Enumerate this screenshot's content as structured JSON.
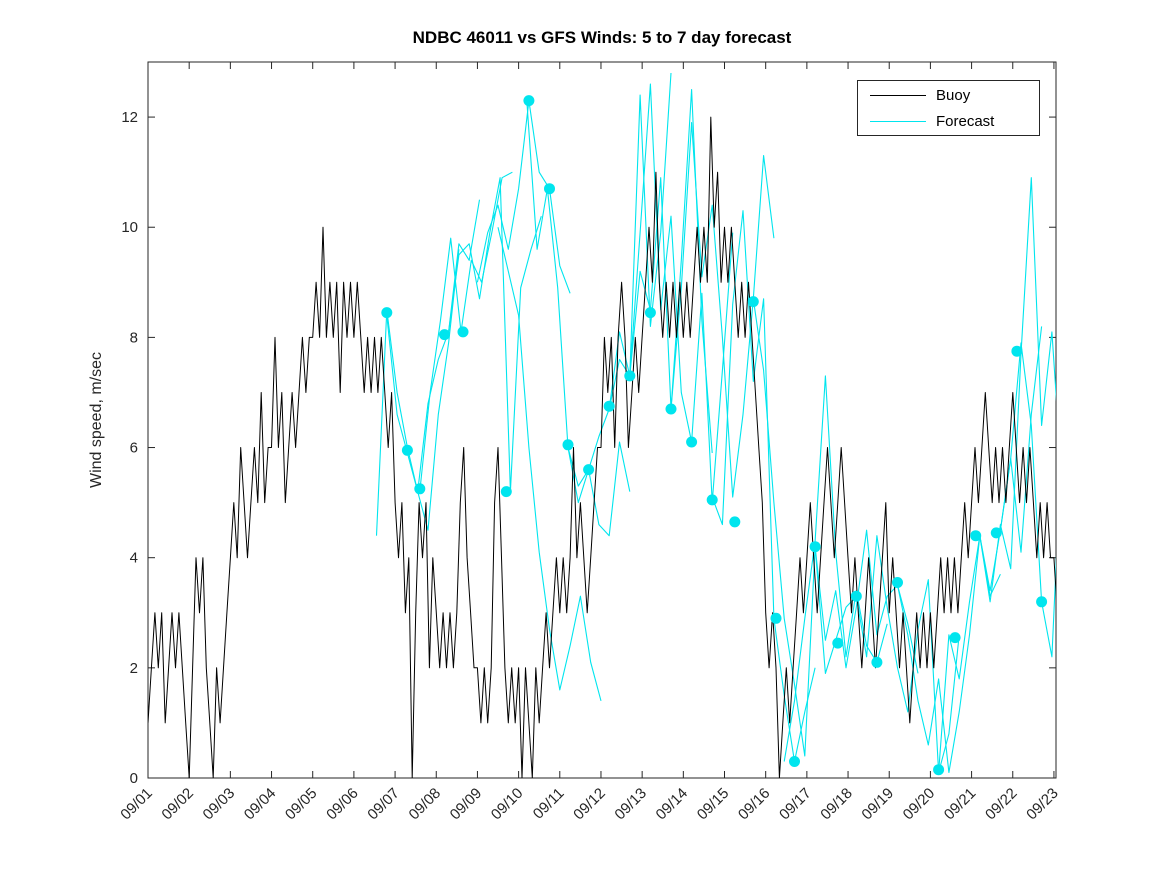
{
  "chart_data": {
    "type": "line",
    "title": "NDBC 46011 vs GFS Winds: 5 to 7 day forecast",
    "xlabel": "",
    "ylabel": "Wind speed, m/sec",
    "xlim": [
      1,
      23.05
    ],
    "ylim": [
      0,
      13
    ],
    "y_ticks": [
      0,
      2,
      4,
      6,
      8,
      10,
      12
    ],
    "x_ticks": [
      1,
      2,
      3,
      4,
      5,
      6,
      7,
      8,
      9,
      10,
      11,
      12,
      13,
      14,
      15,
      16,
      17,
      18,
      19,
      20,
      21,
      22,
      23
    ],
    "x_tick_labels": [
      "09/01",
      "09/02",
      "09/03",
      "09/04",
      "09/05",
      "09/06",
      "09/07",
      "09/08",
      "09/09",
      "09/10",
      "09/11",
      "09/12",
      "09/13",
      "09/14",
      "09/15",
      "09/16",
      "09/17",
      "09/18",
      "09/19",
      "09/20",
      "09/21",
      "09/22",
      "09/23"
    ],
    "grid": false,
    "legend_position": "top-right",
    "x_unit": "date (day number, 09/01 = 1)",
    "buoy": {
      "name": "Buoy",
      "color": "#000000",
      "start": 1.0,
      "step": 0.0833333,
      "vals": [
        1,
        2,
        3,
        2,
        3,
        1,
        2,
        3,
        2,
        3,
        2,
        1,
        0,
        2,
        4,
        3,
        4,
        2,
        1,
        0,
        2,
        1,
        2,
        3,
        4,
        5,
        4,
        6,
        5,
        4,
        5,
        6,
        5,
        7,
        5,
        6,
        6,
        8,
        6,
        7,
        5,
        6,
        7,
        6,
        7,
        8,
        7,
        8,
        8,
        9,
        8,
        10,
        8,
        9,
        8,
        9,
        7,
        9,
        8,
        9,
        8,
        9,
        8,
        7,
        8,
        7,
        8,
        7,
        8,
        7,
        6,
        7,
        5,
        4,
        5,
        3,
        4,
        0,
        3,
        5,
        4,
        5,
        2,
        4,
        3,
        2,
        3,
        2,
        3,
        2,
        3,
        5,
        6,
        4,
        3,
        2,
        2,
        1,
        2,
        1,
        2,
        5,
        6,
        4,
        2,
        1,
        2,
        1,
        2,
        0,
        2,
        1,
        0,
        2,
        1,
        2,
        3,
        2,
        3,
        4,
        3,
        4,
        3,
        4,
        6,
        4,
        5,
        4,
        3,
        4,
        5,
        6,
        6,
        8,
        7,
        8,
        6,
        8,
        9,
        8,
        6,
        7,
        8,
        7,
        8,
        9,
        10,
        9,
        11,
        9,
        8,
        9,
        8,
        9,
        8,
        9,
        8,
        9,
        8,
        9,
        10,
        9,
        10,
        9,
        12,
        10,
        11,
        9,
        10,
        9,
        10,
        9,
        8,
        9,
        8,
        9,
        8,
        7,
        6,
        5,
        3,
        2,
        3,
        2,
        0,
        1,
        2,
        1,
        2,
        3,
        4,
        3,
        4,
        5,
        4,
        3,
        4,
        5,
        6,
        5,
        4,
        5,
        6,
        5,
        4,
        3,
        4,
        3,
        2,
        3,
        4,
        3,
        2,
        3,
        4,
        5,
        3,
        4,
        3,
        2,
        3,
        2,
        1,
        2,
        3,
        2,
        3,
        2,
        3,
        2,
        3,
        4,
        3,
        4,
        3,
        4,
        3,
        4,
        5,
        4,
        5,
        6,
        5,
        6,
        7,
        6,
        5,
        6,
        5,
        6,
        5,
        6,
        7,
        6,
        5,
        6,
        5,
        6,
        5,
        4,
        5,
        4,
        5,
        4,
        4,
        3,
        4,
        3
      ]
    },
    "forecast": {
      "name": "Forecast",
      "color": "#00E5EE",
      "segments": [
        {
          "start": 6.55,
          "step": 0.25,
          "vals": [
            4.4,
            8.5,
            7.0,
            6.0,
            5.2,
            4.5,
            6.6,
            7.9,
            9.6
          ]
        },
        {
          "start": 6.8,
          "step": 0.25,
          "vals": [
            8.4,
            6.6,
            5.9,
            5.2,
            6.8,
            7.6,
            8.1,
            9.7,
            9.4,
            10.5
          ]
        },
        {
          "start": 7.6,
          "step": 0.25,
          "vals": [
            5.2,
            7.0,
            8.3,
            9.8,
            8.1,
            9.4,
            9.0,
            9.9,
            10.9,
            11.0
          ]
        },
        {
          "start": 8.3,
          "step": 0.25,
          "vals": [
            8.1,
            9.5,
            9.7,
            8.7,
            9.9,
            10.9,
            5.2,
            8.9,
            9.6,
            10.2
          ]
        },
        {
          "start": 9.0,
          "step": 0.25,
          "vals": [
            9.0,
            9.9,
            10.4,
            9.6,
            10.7,
            12.3,
            11.0,
            10.7,
            9.3,
            8.8
          ]
        },
        {
          "start": 9.5,
          "step": 0.25,
          "vals": [
            10.0,
            9.2,
            8.4,
            6.0,
            4.1,
            2.7,
            1.6,
            2.4,
            3.3,
            2.1,
            1.4
          ]
        },
        {
          "start": 10.2,
          "step": 0.25,
          "vals": [
            12.3,
            9.6,
            10.7,
            8.9,
            6.0,
            5.3,
            5.6,
            4.6,
            4.4,
            6.1,
            5.2
          ]
        },
        {
          "start": 11.2,
          "step": 0.25,
          "vals": [
            6.0,
            5.0,
            5.6,
            6.2,
            6.7,
            7.6,
            7.3,
            12.4,
            8.2,
            9.9,
            12.8
          ]
        },
        {
          "start": 12.2,
          "step": 0.25,
          "vals": [
            6.7,
            8.1,
            7.3,
            9.2,
            8.5,
            10.9,
            6.7,
            9.4,
            12.5,
            8.3,
            5.9
          ]
        },
        {
          "start": 12.7,
          "step": 0.25,
          "vals": [
            7.3,
            9.9,
            12.6,
            8.5,
            10.2,
            7.0,
            6.1,
            8.8,
            5.0,
            7.4,
            9.9
          ]
        },
        {
          "start": 13.7,
          "step": 0.25,
          "vals": [
            6.7,
            8.9,
            11.9,
            9.1,
            10.4,
            8.0,
            5.1,
            6.6,
            8.7,
            11.3,
            9.8
          ]
        },
        {
          "start": 14.7,
          "step": 0.25,
          "vals": [
            5.1,
            4.6,
            8.6,
            10.3,
            7.2,
            8.7,
            2.9,
            1.5,
            0.3,
            1.2,
            2.0
          ]
        },
        {
          "start": 15.7,
          "step": 0.25,
          "vals": [
            8.7,
            7.4,
            5.0,
            2.9,
            1.7,
            0.4,
            4.2,
            1.9,
            2.5,
            3.1,
            3.3
          ]
        },
        {
          "start": 16.45,
          "step": 0.25,
          "vals": [
            0.3,
            1.4,
            2.9,
            4.3,
            7.3,
            4.1,
            2.2,
            3.4,
            2.4,
            2.1,
            2.8
          ]
        },
        {
          "start": 17.2,
          "step": 0.25,
          "vals": [
            4.2,
            2.5,
            3.4,
            2.0,
            3.1,
            4.5,
            2.6,
            3.3,
            3.5,
            2.8,
            1.9
          ]
        },
        {
          "start": 18.2,
          "step": 0.25,
          "vals": [
            3.3,
            2.2,
            4.4,
            3.1,
            2.0,
            1.2,
            2.7,
            3.6,
            0.1,
            0.8,
            2.6
          ]
        },
        {
          "start": 19.2,
          "step": 0.25,
          "vals": [
            3.5,
            2.6,
            1.4,
            0.6,
            1.8,
            0.1,
            1.2,
            2.6,
            4.4,
            3.3,
            3.7
          ]
        },
        {
          "start": 20.2,
          "step": 0.25,
          "vals": [
            0.1,
            2.6,
            1.8,
            3.2,
            4.4,
            3.4,
            4.5,
            5.8,
            4.1,
            6.6,
            8.2
          ]
        },
        {
          "start": 21.2,
          "step": 0.25,
          "vals": [
            4.4,
            3.2,
            4.6,
            3.8,
            7.7,
            10.9,
            6.4,
            8.1,
            5.3,
            3.2,
            6.3
          ]
        },
        {
          "start": 21.7,
          "step": 0.25,
          "vals": [
            4.5,
            5.8,
            7.9,
            6.4,
            3.2,
            2.2,
            6.3,
            9.7
          ]
        }
      ],
      "markers": [
        [
          6.8,
          8.45
        ],
        [
          7.3,
          5.95
        ],
        [
          7.6,
          5.25
        ],
        [
          8.2,
          8.05
        ],
        [
          8.65,
          8.1
        ],
        [
          9.7,
          5.2
        ],
        [
          10.25,
          12.3
        ],
        [
          10.75,
          10.7
        ],
        [
          11.2,
          6.05
        ],
        [
          11.7,
          5.6
        ],
        [
          12.2,
          6.75
        ],
        [
          12.7,
          7.3
        ],
        [
          13.2,
          8.45
        ],
        [
          13.7,
          6.7
        ],
        [
          14.2,
          6.1
        ],
        [
          14.7,
          5.05
        ],
        [
          15.25,
          4.65
        ],
        [
          15.7,
          8.65
        ],
        [
          16.25,
          2.9
        ],
        [
          16.7,
          0.3
        ],
        [
          17.2,
          4.2
        ],
        [
          17.75,
          2.45
        ],
        [
          18.2,
          3.3
        ],
        [
          18.7,
          2.1
        ],
        [
          19.2,
          3.55
        ],
        [
          20.2,
          0.15
        ],
        [
          20.6,
          2.55
        ],
        [
          21.1,
          4.4
        ],
        [
          21.6,
          4.45
        ],
        [
          22.1,
          7.75
        ],
        [
          22.7,
          3.2
        ]
      ]
    }
  }
}
